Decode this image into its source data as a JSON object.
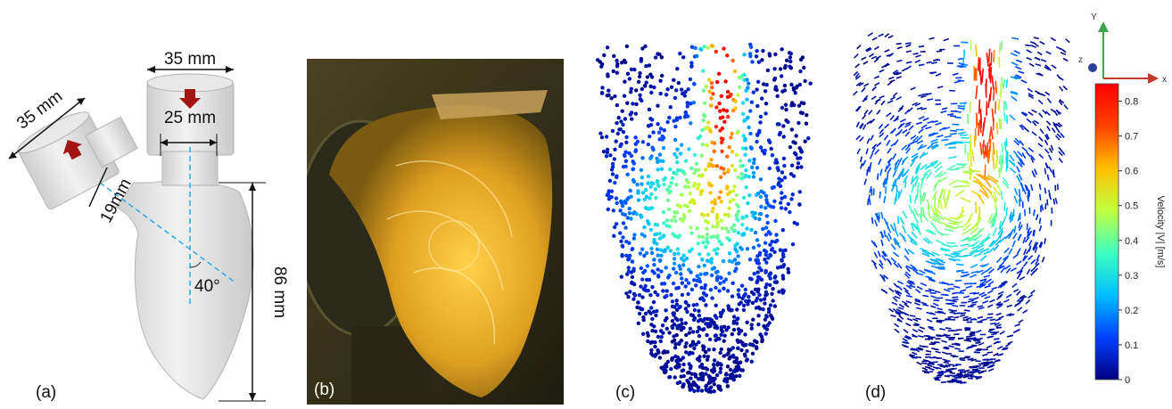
{
  "panels": {
    "a": {
      "label": "(a)",
      "dim_top": "35 mm",
      "dim_left": "35 mm",
      "dim_inner": "25 mm",
      "dim_neck": "19mm",
      "dim_height": "86 mm",
      "angle": "40°"
    },
    "b": {
      "label": "(b)"
    },
    "c": {
      "label": "(c)"
    },
    "d": {
      "label": "(d)",
      "axes": {
        "x": "x",
        "y": "Y",
        "z": "z"
      }
    }
  },
  "colorbar": {
    "title": "Velocity |V| [m/s]",
    "ticks": [
      "0.8",
      "0.7",
      "0.6",
      "0.5",
      "0.4",
      "0.3",
      "0.2",
      "0.1",
      "0"
    ],
    "tick_values": [
      0.8,
      0.7,
      0.6,
      0.5,
      0.4,
      0.3,
      0.2,
      0.1,
      0
    ],
    "range": [
      0,
      0.85
    ],
    "colormap": [
      "#000080",
      "#0040ff",
      "#00c0ff",
      "#40ffc0",
      "#c0ff40",
      "#ffc000",
      "#ff4000",
      "#ff0000"
    ]
  },
  "colors": {
    "arrow_red": "#a31515",
    "guide_cyan": "#2aa8e0",
    "photo_amber": "#e0a020",
    "photo_dark": "#1f1d10"
  }
}
